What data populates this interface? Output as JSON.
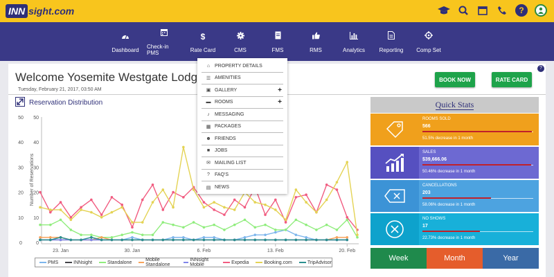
{
  "brand": {
    "logo_prefix": "INN",
    "logo_suffix": "sight.com"
  },
  "top_icons": [
    "graduation-cap-icon",
    "search-icon",
    "calendar-icon",
    "phone-icon",
    "help-icon",
    "user-avatar-icon"
  ],
  "nav": [
    {
      "label": "Dashboard",
      "icon": "dashboard-icon"
    },
    {
      "label": "Check-in PMS",
      "icon": "calendar-icon"
    },
    {
      "label": "Rate Card",
      "icon": "dollar-icon"
    },
    {
      "label": "CMS",
      "icon": "gear-icon"
    },
    {
      "label": "FMS",
      "icon": "file-icon"
    },
    {
      "label": "RMS",
      "icon": "thumbs-up-icon"
    },
    {
      "label": "Analytics",
      "icon": "bar-chart-icon"
    },
    {
      "label": "Reporting",
      "icon": "document-icon"
    },
    {
      "label": "Comp Set",
      "icon": "crosshair-icon"
    }
  ],
  "cms_menu": [
    {
      "label": "PROPERTY DETAILS",
      "icon": "home-icon",
      "expandable": false
    },
    {
      "label": "AMENITIES",
      "icon": "list-icon",
      "expandable": false
    },
    {
      "label": "GALLERY",
      "icon": "image-icon",
      "expandable": true
    },
    {
      "label": "ROOMS",
      "icon": "bed-icon",
      "expandable": true
    },
    {
      "label": "MESSAGING",
      "icon": "bell-icon",
      "expandable": false
    },
    {
      "label": "PACKAGES",
      "icon": "package-icon",
      "expandable": false
    },
    {
      "label": "FRIENDS",
      "icon": "users-icon",
      "expandable": false
    },
    {
      "label": "JOBS",
      "icon": "briefcase-icon",
      "expandable": false
    },
    {
      "label": "MAILING LIST",
      "icon": "envelope-icon",
      "expandable": false
    },
    {
      "label": "FAQ'S",
      "icon": "question-icon",
      "expandable": false
    },
    {
      "label": "NEWS",
      "icon": "newspaper-icon",
      "expandable": false
    }
  ],
  "main": {
    "welcome": "Welcome Yosemite Westgate Lodge",
    "date": "Tuesday, February 21, 2017, 03:50 AM",
    "book_now": "BOOK NOW",
    "rate_card": "RATE CARD",
    "help": "?"
  },
  "reservation_title": "Reservation Distribution",
  "chart_data": {
    "type": "line",
    "title": "Reservation Distribution",
    "ylabel": "Number of Reservations",
    "xlabel": "",
    "ylim": [
      0,
      50
    ],
    "yticks": [
      0,
      10,
      20,
      30,
      40,
      50
    ],
    "xtick_labels": [
      {
        "label": "23. Jan",
        "index": 2
      },
      {
        "label": "30. Jan",
        "index": 9
      },
      {
        "label": "6. Feb",
        "index": 16
      },
      {
        "label": "13. Feb",
        "index": 23
      },
      {
        "label": "20. Feb",
        "index": 30
      }
    ],
    "series": [
      {
        "name": "PMS",
        "color": "#7cb5ec",
        "values": [
          1,
          1,
          2,
          1,
          1,
          2,
          1,
          1,
          1,
          2,
          1,
          1,
          1,
          2,
          2,
          1,
          2,
          2,
          1,
          1,
          2,
          3,
          3,
          4,
          5,
          3,
          2,
          1,
          1,
          1,
          1
        ]
      },
      {
        "name": "INNsight",
        "color": "#434348",
        "values": [
          1,
          1,
          1,
          1,
          1,
          1,
          1,
          1,
          1,
          1,
          1,
          1,
          1,
          1,
          1,
          1,
          1,
          1,
          1,
          1,
          1,
          1,
          1,
          1,
          1,
          1,
          1,
          1,
          1,
          1,
          1
        ]
      },
      {
        "name": "Standalone",
        "color": "#90ed7d",
        "values": [
          7,
          7,
          9,
          5,
          3,
          3,
          2,
          2,
          3,
          4,
          3,
          3,
          8,
          7,
          6,
          8,
          6,
          7,
          5,
          7,
          9,
          6,
          7,
          5,
          5,
          9,
          7,
          5,
          7,
          5,
          9,
          2
        ]
      },
      {
        "name": "Mobile Standalone",
        "color": "#f7a35c",
        "values": [
          2,
          2,
          2,
          1,
          1,
          1,
          2,
          1,
          1,
          1,
          1,
          1,
          1,
          1,
          1,
          1,
          1,
          1,
          1,
          1,
          1,
          1,
          1,
          1,
          1,
          1,
          1,
          1,
          1,
          2,
          2
        ]
      },
      {
        "name": "INNsight Mobile",
        "color": "#8085e9",
        "values": [
          1,
          1,
          1,
          1,
          1,
          1,
          1,
          1,
          1,
          1,
          1,
          1,
          1,
          1,
          1,
          1,
          1,
          1,
          1,
          1,
          1,
          1,
          1,
          1,
          1,
          1,
          1,
          1,
          1,
          1,
          1
        ]
      },
      {
        "name": "Expedia",
        "color": "#f15c80",
        "values": [
          20,
          12,
          16,
          10,
          14,
          17,
          11,
          18,
          15,
          6,
          17,
          23,
          13,
          20,
          18,
          22,
          16,
          13,
          11,
          17,
          14,
          22,
          11,
          17,
          8,
          18,
          19,
          12,
          23,
          21,
          10,
          5
        ]
      },
      {
        "name": "Booking.com",
        "color": "#e4d354",
        "values": [
          14,
          13,
          13,
          9,
          13,
          12,
          10,
          12,
          14,
          8,
          8,
          16,
          21,
          14,
          38,
          21,
          14,
          16,
          14,
          13,
          20,
          16,
          15,
          13,
          9,
          21,
          16,
          12,
          17,
          24,
          32,
          3
        ]
      },
      {
        "name": "TripAdvisor",
        "color": "#2b908f",
        "values": [
          1,
          1,
          2,
          1,
          1,
          2,
          1,
          1,
          1,
          1,
          1,
          1,
          1,
          1,
          1,
          1,
          1,
          1,
          1,
          1,
          1,
          1,
          1,
          1,
          1,
          1,
          1,
          1,
          1,
          1,
          1
        ]
      }
    ]
  },
  "quick_stats": {
    "title": "Quick Stats",
    "items": [
      {
        "label": "ROOMS SOLD",
        "value": "566",
        "note": "51.5% decrease in 1 month",
        "progress": 0.99,
        "color": "#f0a01c",
        "icon": "tag-icon"
      },
      {
        "label": "SALES",
        "value": "$39,666.06",
        "note": "50.46% decrease in 1 month",
        "progress": 0.98,
        "color": "#6d69d2",
        "icon": "growth-chart-icon"
      },
      {
        "label": "CANCELLATIONS",
        "value": "203",
        "note": "58.06% decrease in 1 month",
        "progress": 0.62,
        "color": "#4da3e0",
        "icon": "cancel-tag-icon"
      },
      {
        "label": "NO SHOWS",
        "value": "17",
        "note": "22.73% decrease in 1 month",
        "progress": 0.52,
        "color": "#18b0d9",
        "icon": "x-circle-icon"
      }
    ]
  },
  "periods": [
    {
      "label": "Week",
      "color": "#1f8a4c"
    },
    {
      "label": "Month",
      "color": "#e55d2c"
    },
    {
      "label": "Year",
      "color": "#3a6aa6"
    }
  ]
}
